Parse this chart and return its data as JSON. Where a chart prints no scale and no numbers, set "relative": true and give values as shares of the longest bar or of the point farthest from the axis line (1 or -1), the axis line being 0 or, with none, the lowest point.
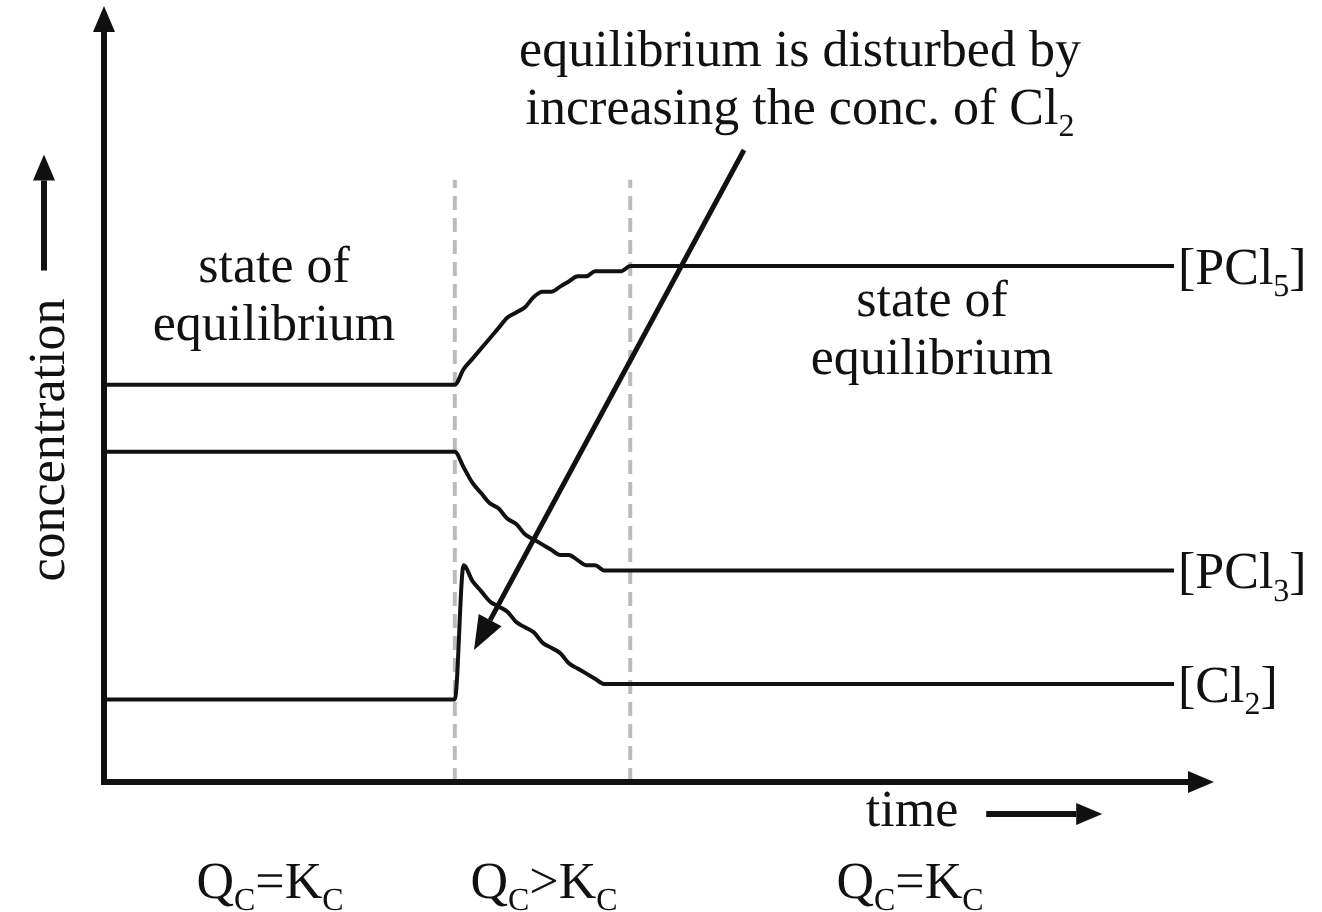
{
  "chart_data": {
    "type": "line",
    "relative": true,
    "tick_labels": false,
    "marker": "none",
    "xlabel": "time",
    "ylabel": "concentration",
    "categories": [
      null,
      null,
      null,
      null,
      null,
      null,
      null,
      null,
      null,
      null,
      null,
      null,
      null,
      null,
      null,
      null,
      null,
      null,
      null,
      null,
      null,
      null,
      null,
      null,
      null,
      null,
      null,
      null,
      null,
      null,
      null,
      null,
      null,
      null,
      null,
      null,
      null,
      null,
      null,
      null,
      null,
      null,
      null,
      null,
      null,
      null,
      null,
      null,
      null,
      null,
      null,
      null,
      null,
      null,
      null,
      null,
      null,
      null,
      null,
      null,
      null,
      null,
      null,
      null,
      null,
      null,
      null,
      null,
      null,
      null,
      null,
      null,
      null,
      null,
      null,
      null,
      null,
      null,
      null,
      null,
      null,
      null,
      null,
      null,
      null,
      null,
      null,
      null,
      null,
      null,
      null,
      null,
      null,
      null,
      null,
      null,
      null,
      null,
      null,
      null,
      null,
      null,
      null,
      null,
      null,
      null,
      null,
      null,
      null,
      null,
      null,
      null,
      null,
      null,
      null,
      null,
      null,
      null,
      null,
      null,
      null,
      null,
      null
    ],
    "series": [
      {
        "name": "[PCl$_{5}$]",
        "color": "#111111",
        "values": [
          0.77,
          0.77,
          0.77,
          0.77,
          0.77,
          0.77,
          0.77,
          0.77,
          0.77,
          0.77,
          0.77,
          0.77,
          0.77,
          0.77,
          0.77,
          0.77,
          0.77,
          0.77,
          0.77,
          0.77,
          0.77,
          0.77,
          0.77,
          0.77,
          0.77,
          0.77,
          0.77,
          0.77,
          0.77,
          0.77,
          0.77,
          0.77,
          0.77,
          0.77,
          0.77,
          0.77,
          0.77,
          0.77,
          0.77,
          0.77,
          0.77,
          0.8,
          0.82,
          0.84,
          0.86,
          0.88,
          0.9,
          0.91,
          0.92,
          0.94,
          0.95,
          0.95,
          0.96,
          0.97,
          0.98,
          0.98,
          0.99,
          0.99,
          0.99,
          0.99,
          1,
          1,
          1,
          1,
          1,
          1,
          1,
          1,
          1,
          1,
          1,
          1,
          1,
          1,
          1,
          1,
          1,
          1,
          1,
          1,
          1,
          1,
          1,
          1,
          1,
          1,
          1,
          1,
          1,
          1,
          1,
          1,
          1,
          1,
          1,
          1,
          1,
          1,
          1,
          1,
          1,
          1,
          1,
          1,
          1,
          1,
          1,
          1,
          1,
          1,
          1,
          1,
          1,
          1,
          1,
          1,
          1,
          1,
          1,
          1,
          1,
          1,
          1
        ]
      },
      {
        "name": "[PCl$_{3}$]",
        "color": "#111111",
        "values": [
          0.64,
          0.64,
          0.64,
          0.64,
          0.64,
          0.64,
          0.64,
          0.64,
          0.64,
          0.64,
          0.64,
          0.64,
          0.64,
          0.64,
          0.64,
          0.64,
          0.64,
          0.64,
          0.64,
          0.64,
          0.64,
          0.64,
          0.64,
          0.64,
          0.64,
          0.64,
          0.64,
          0.64,
          0.64,
          0.64,
          0.64,
          0.64,
          0.64,
          0.64,
          0.64,
          0.64,
          0.64,
          0.64,
          0.64,
          0.64,
          0.64,
          0.61,
          0.58,
          0.56,
          0.54,
          0.53,
          0.51,
          0.5,
          0.48,
          0.47,
          0.46,
          0.45,
          0.44,
          0.44,
          0.43,
          0.42,
          0.42,
          0.41,
          0.41,
          0.41,
          0.41,
          0.41,
          0.41,
          0.41,
          0.41,
          0.41,
          0.41,
          0.41,
          0.41,
          0.41,
          0.41,
          0.41,
          0.41,
          0.41,
          0.41,
          0.41,
          0.41,
          0.41,
          0.41,
          0.41,
          0.41,
          0.41,
          0.41,
          0.41,
          0.41,
          0.41,
          0.41,
          0.41,
          0.41,
          0.41,
          0.41,
          0.41,
          0.41,
          0.41,
          0.41,
          0.41,
          0.41,
          0.41,
          0.41,
          0.41,
          0.41,
          0.41,
          0.41,
          0.41,
          0.41,
          0.41,
          0.41,
          0.41,
          0.41,
          0.41,
          0.41,
          0.41,
          0.41,
          0.41,
          0.41,
          0.41,
          0.41,
          0.41,
          0.41,
          0.41,
          0.41,
          0.41,
          0.41
        ]
      },
      {
        "name": "[Cl$_{2}$]",
        "color": "#111111",
        "values": [
          0.16,
          0.16,
          0.16,
          0.16,
          0.16,
          0.16,
          0.16,
          0.16,
          0.16,
          0.16,
          0.16,
          0.16,
          0.16,
          0.16,
          0.16,
          0.16,
          0.16,
          0.16,
          0.16,
          0.16,
          0.16,
          0.16,
          0.16,
          0.16,
          0.16,
          0.16,
          0.16,
          0.16,
          0.16,
          0.16,
          0.16,
          0.16,
          0.16,
          0.16,
          0.16,
          0.16,
          0.16,
          0.16,
          0.16,
          0.16,
          0.16,
          0.42,
          0.39,
          0.37,
          0.35,
          0.34,
          0.33,
          0.31,
          0.3,
          0.29,
          0.27,
          0.26,
          0.25,
          0.23,
          0.22,
          0.21,
          0.2,
          0.19,
          0.19,
          0.19,
          0.19,
          0.19,
          0.19,
          0.19,
          0.19,
          0.19,
          0.19,
          0.19,
          0.19,
          0.19,
          0.19,
          0.19,
          0.19,
          0.19,
          0.19,
          0.19,
          0.19,
          0.19,
          0.19,
          0.19,
          0.19,
          0.19,
          0.19,
          0.19,
          0.19,
          0.19,
          0.19,
          0.19,
          0.19,
          0.19,
          0.19,
          0.19,
          0.19,
          0.19,
          0.19,
          0.19,
          0.19,
          0.19,
          0.19,
          0.19,
          0.19,
          0.19,
          0.19,
          0.19,
          0.19,
          0.19,
          0.19,
          0.19,
          0.19,
          0.19,
          0.19,
          0.19,
          0.19,
          0.19,
          0.19,
          0.19,
          0.19,
          0.19,
          0.19,
          0.19,
          0.19,
          0.19,
          0.19
        ]
      }
    ],
    "annotations": [
      "state of equilibrium",
      "state of equilibrium",
      "equilibrium is disturbed by increasing the conc. of Cl$_{2}$",
      "Q$_{C}$=K$_{C}$",
      "Q$_{C}$>K$_{C}$",
      "Q$_{C}$=K$_{C}$"
    ]
  }
}
